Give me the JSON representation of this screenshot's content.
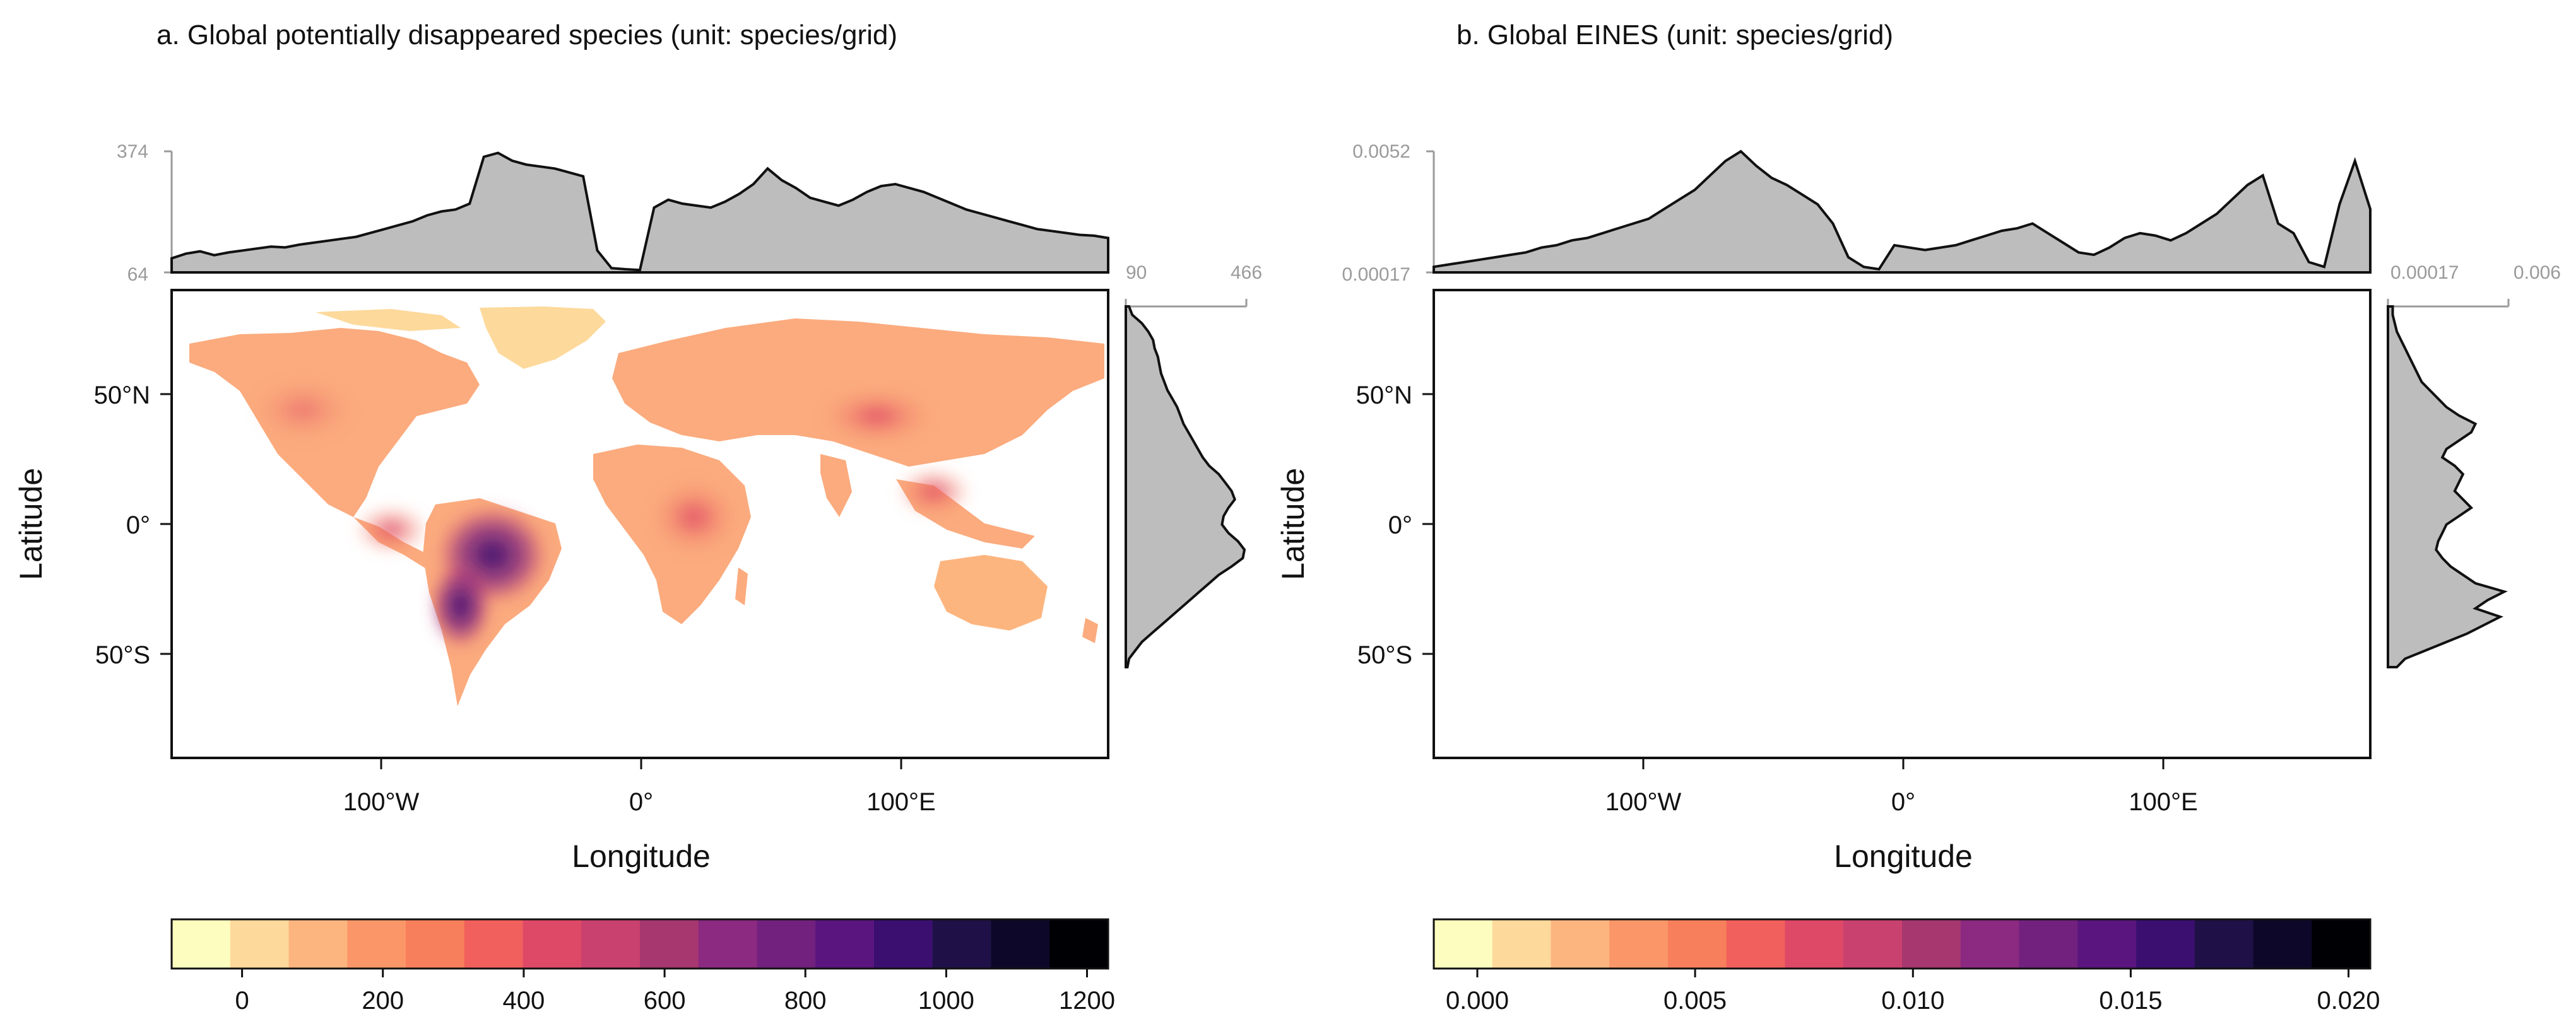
{
  "colors": {
    "ocean": "#ffffff",
    "frame": "#111111",
    "marginal_fill": "#bdbdbd",
    "marginal_line": "#111111",
    "marginal_axis": "#9a9a9a",
    "colorbar": [
      "#fcfdbf",
      "#fdd99b",
      "#fdb57f",
      "#fb9669",
      "#f87f5c",
      "#f1605d",
      "#de4968",
      "#c9416f",
      "#a6376f",
      "#8c2981",
      "#72217f",
      "#5a167e",
      "#3b0f70",
      "#1f1147",
      "#0d0829",
      "#000004"
    ]
  },
  "panels": [
    {
      "id": "a",
      "title": "a. Global potentially disappeared species (unit: species/grid)",
      "xlabel": "Longitude",
      "ylabel": "Latitude",
      "x_ticks": [
        "100°W",
        "0°",
        "100°E"
      ],
      "y_ticks": [
        "50°N",
        "0°",
        "50°S"
      ],
      "top_marginal": {
        "min_label": "64",
        "max_label": "374",
        "min": 64,
        "max": 374,
        "values": [
          100,
          112,
          118,
          108,
          115,
          120,
          125,
          130,
          128,
          135,
          140,
          145,
          150,
          155,
          165,
          175,
          185,
          195,
          210,
          220,
          225,
          240,
          360,
          370,
          350,
          340,
          335,
          330,
          320,
          310,
          120,
          75,
          72,
          70,
          230,
          250,
          240,
          235,
          230,
          245,
          265,
          290,
          330,
          300,
          280,
          255,
          245,
          235,
          250,
          270,
          285,
          290,
          280,
          270,
          255,
          240,
          225,
          215,
          205,
          195,
          185,
          175,
          170,
          165,
          160,
          158,
          152
        ]
      },
      "right_marginal": {
        "min_label": "90",
        "max_label": "466",
        "min": 90,
        "max": 466,
        "values": [
          100,
          110,
          140,
          160,
          175,
          180,
          190,
          195,
          200,
          210,
          220,
          235,
          250,
          260,
          270,
          285,
          300,
          315,
          330,
          350,
          380,
          400,
          420,
          430,
          410,
          395,
          390,
          410,
          440,
          460,
          455,
          420,
          380,
          350,
          320,
          290,
          260,
          230,
          200,
          170,
          140,
          120,
          100,
          95
        ]
      },
      "colorbar": {
        "ticks": [
          "0",
          "200",
          "400",
          "600",
          "800",
          "1000",
          "1200"
        ],
        "min": -100,
        "max": 1230
      }
    },
    {
      "id": "b",
      "title": "b. Global EINES (unit: species/grid)",
      "xlabel": "Longitude",
      "ylabel": "Latitude",
      "x_ticks": [
        "100°W",
        "0°",
        "100°E"
      ],
      "y_ticks": [
        "50°N",
        "0°",
        "50°S"
      ],
      "top_marginal": {
        "min_label": "0.00017",
        "max_label": "0.0052",
        "min": 0.00017,
        "max": 0.0052,
        "values": [
          0.0004,
          0.0005,
          0.0006,
          0.0007,
          0.0008,
          0.0009,
          0.001,
          0.0012,
          0.0013,
          0.0015,
          0.0016,
          0.0018,
          0.002,
          0.0022,
          0.0024,
          0.0028,
          0.0032,
          0.0036,
          0.0042,
          0.0048,
          0.0052,
          0.0046,
          0.0041,
          0.0038,
          0.0034,
          0.003,
          0.0022,
          0.0008,
          0.0004,
          0.0003,
          0.0013,
          0.0012,
          0.0011,
          0.0012,
          0.0013,
          0.0015,
          0.0017,
          0.0019,
          0.002,
          0.0022,
          0.0018,
          0.0014,
          0.001,
          0.0009,
          0.0012,
          0.0016,
          0.0018,
          0.0017,
          0.0015,
          0.0018,
          0.0022,
          0.0026,
          0.0032,
          0.0038,
          0.0042,
          0.0022,
          0.0018,
          0.0006,
          0.0004,
          0.003,
          0.0048,
          0.0028
        ]
      },
      "right_marginal": {
        "min_label": "0.00017",
        "max_label": "0.006",
        "min": 0.00017,
        "max": 0.006,
        "values": [
          0.0004,
          0.0004,
          0.0005,
          0.0006,
          0.0008,
          0.001,
          0.0012,
          0.0014,
          0.0016,
          0.0018,
          0.0022,
          0.0026,
          0.003,
          0.0036,
          0.0044,
          0.0042,
          0.0036,
          0.003,
          0.0028,
          0.0034,
          0.0038,
          0.0036,
          0.0034,
          0.0038,
          0.0042,
          0.0036,
          0.003,
          0.0028,
          0.0026,
          0.0025,
          0.0028,
          0.0032,
          0.0038,
          0.0044,
          0.0058,
          0.005,
          0.0044,
          0.0056,
          0.0048,
          0.004,
          0.003,
          0.002,
          0.001,
          0.0006
        ]
      },
      "colorbar": {
        "ticks": [
          "0.000",
          "0.005",
          "0.010",
          "0.015",
          "0.020"
        ],
        "min": -0.001,
        "max": 0.0205
      }
    }
  ]
}
